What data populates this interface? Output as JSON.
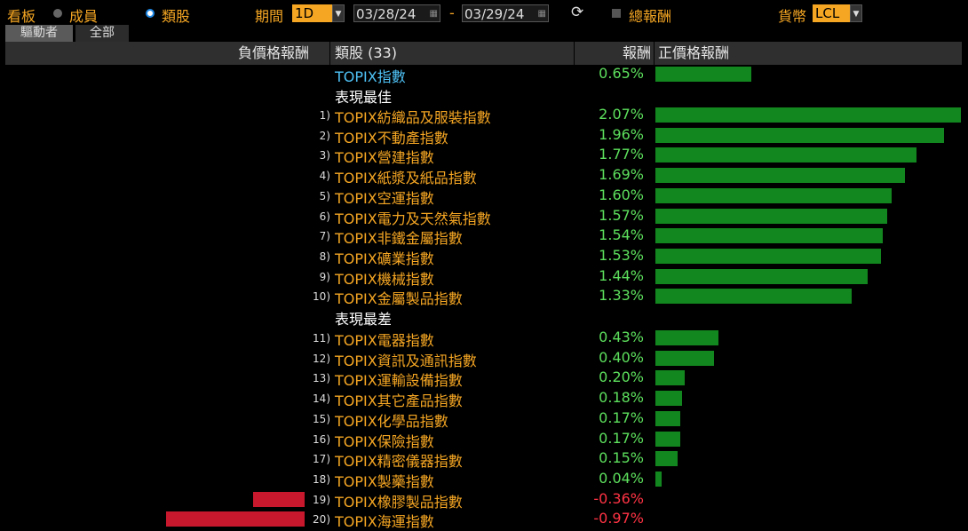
{
  "toolbar": {
    "board_label": "看板",
    "members_label": "成員",
    "sector_label": "類股",
    "period_label": "期間",
    "period_value": "1D",
    "date_from": "03/28/24",
    "date_sep": "-",
    "date_to": "03/29/24",
    "total_return_label": "總報酬",
    "currency_label": "貨幣",
    "currency_value": "LCL"
  },
  "tabs": [
    "驅動者",
    "全部"
  ],
  "header": {
    "neg_label": "負價格報酬",
    "sector_label": "類股 (33)",
    "return_label": "報酬",
    "pos_label": "正價格報酬"
  },
  "index_row": {
    "name": "TOPIX指數",
    "ret": "0.65%",
    "value": 0.65
  },
  "best_label": "表現最佳",
  "worst_label": "表現最差",
  "best": [
    {
      "rank": "1)",
      "name": "TOPIX紡織品及服裝指數",
      "ret": "2.07%",
      "value": 2.07
    },
    {
      "rank": "2)",
      "name": "TOPIX不動產指數",
      "ret": "1.96%",
      "value": 1.96
    },
    {
      "rank": "3)",
      "name": "TOPIX營建指數",
      "ret": "1.77%",
      "value": 1.77
    },
    {
      "rank": "4)",
      "name": "TOPIX紙漿及紙品指數",
      "ret": "1.69%",
      "value": 1.69
    },
    {
      "rank": "5)",
      "name": "TOPIX空運指數",
      "ret": "1.60%",
      "value": 1.6
    },
    {
      "rank": "6)",
      "name": "TOPIX電力及天然氣指數",
      "ret": "1.57%",
      "value": 1.57
    },
    {
      "rank": "7)",
      "name": "TOPIX非鐵金屬指數",
      "ret": "1.54%",
      "value": 1.54
    },
    {
      "rank": "8)",
      "name": "TOPIX礦業指數",
      "ret": "1.53%",
      "value": 1.53
    },
    {
      "rank": "9)",
      "name": "TOPIX機械指數",
      "ret": "1.44%",
      "value": 1.44
    },
    {
      "rank": "10)",
      "name": "TOPIX金屬製品指數",
      "ret": "1.33%",
      "value": 1.33
    }
  ],
  "worst": [
    {
      "rank": "11)",
      "name": "TOPIX電器指數",
      "ret": "0.43%",
      "value": 0.43
    },
    {
      "rank": "12)",
      "name": "TOPIX資訊及通訊指數",
      "ret": "0.40%",
      "value": 0.4
    },
    {
      "rank": "13)",
      "name": "TOPIX運輸設備指數",
      "ret": "0.20%",
      "value": 0.2
    },
    {
      "rank": "14)",
      "name": "TOPIX其它產品指數",
      "ret": "0.18%",
      "value": 0.18
    },
    {
      "rank": "15)",
      "name": "TOPIX化學品指數",
      "ret": "0.17%",
      "value": 0.17
    },
    {
      "rank": "16)",
      "name": "TOPIX保險指數",
      "ret": "0.17%",
      "value": 0.17
    },
    {
      "rank": "17)",
      "name": "TOPIX精密儀器指數",
      "ret": "0.15%",
      "value": 0.15
    },
    {
      "rank": "18)",
      "name": "TOPIX製藥指數",
      "ret": "0.04%",
      "value": 0.04
    },
    {
      "rank": "19)",
      "name": "TOPIX橡膠製品指數",
      "ret": "-0.36%",
      "value": -0.36
    },
    {
      "rank": "20)",
      "name": "TOPIX海運指數",
      "ret": "-0.97%",
      "value": -0.97
    }
  ],
  "colors": {
    "accent": "#f5a623",
    "positive": "#13871f",
    "negative": "#c8182e",
    "index_name": "#4fc3f7"
  }
}
